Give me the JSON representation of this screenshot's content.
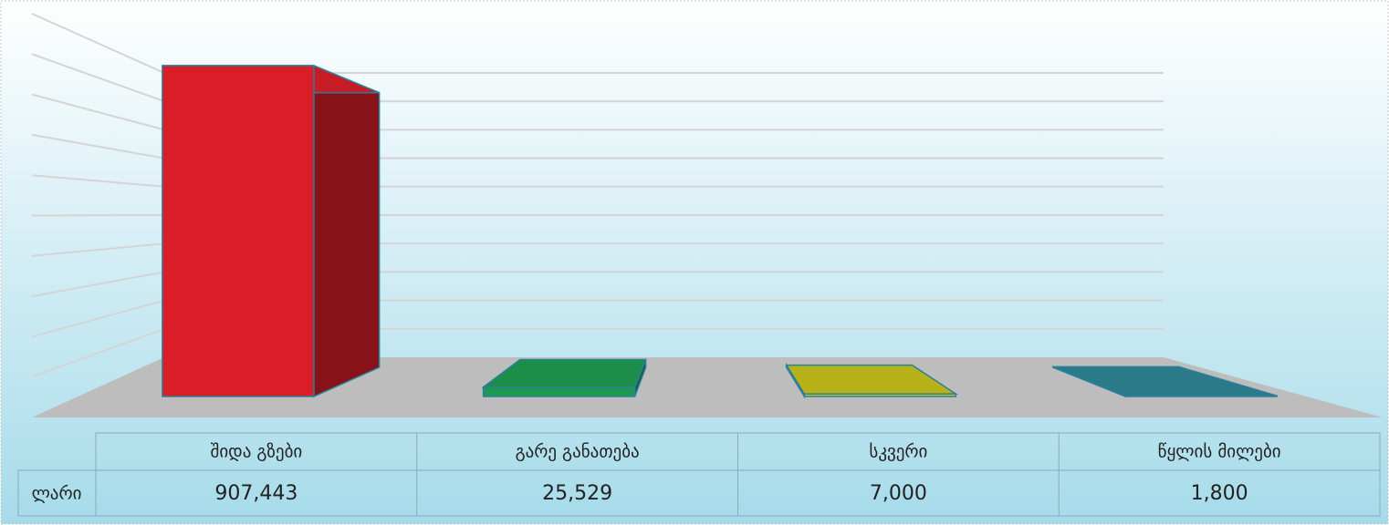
{
  "chart_data": {
    "type": "bar",
    "categories": [
      "შიდა გზები",
      "გარე განათება",
      "სკვერი",
      "წყლის მილები"
    ],
    "series": [
      {
        "name": "ლარი",
        "values": [
          907443,
          25529,
          7000,
          1800
        ],
        "value_labels": [
          "907,443",
          "25,529",
          "7,000",
          "1,800"
        ],
        "colors": [
          "#d91e28",
          "#1e9a50",
          "#c8c21c",
          "#2e8596"
        ]
      }
    ],
    "ylim": [
      0,
      1000000
    ],
    "yticks": [
      0,
      100000,
      200000,
      300000,
      400000,
      500000,
      600000,
      700000,
      800000,
      900000,
      1000000
    ],
    "grid": true
  }
}
